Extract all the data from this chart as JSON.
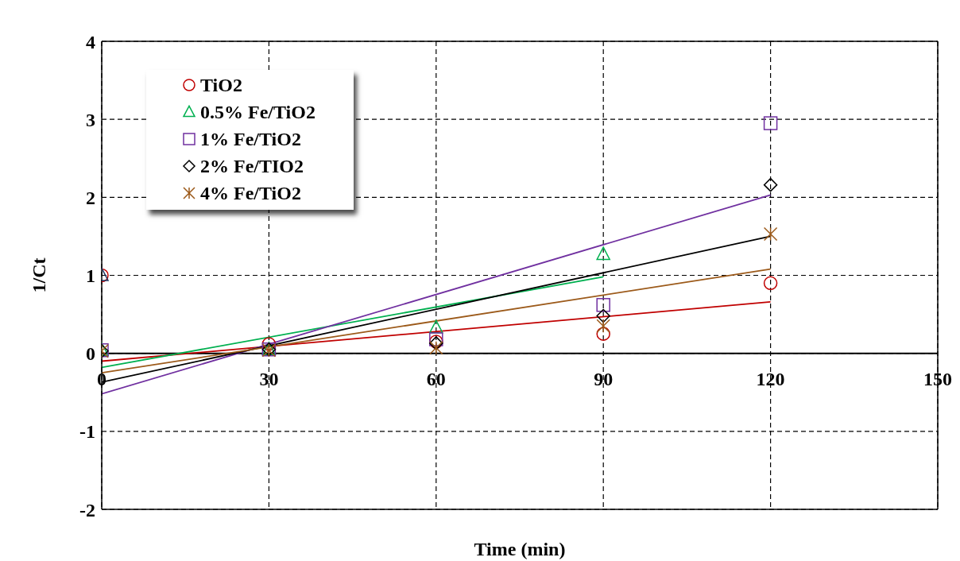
{
  "chart_data": {
    "type": "scatter",
    "xlabel": "Time (min)",
    "ylabel": "1/Ct",
    "x": [
      0,
      30,
      60,
      90,
      120
    ],
    "xlim": [
      0,
      150
    ],
    "xticks": [
      0,
      30,
      60,
      90,
      120,
      150
    ],
    "ylim": [
      -2,
      4
    ],
    "yticks": [
      -2,
      -1,
      0,
      1,
      2,
      3,
      4
    ],
    "grid": true,
    "legend": "top left",
    "series": [
      {
        "name": "TiO2",
        "color": "#c00000",
        "marker": "circle",
        "values": [
          1,
          0.12,
          0.15,
          0.25,
          0.9
        ]
      },
      {
        "name": "0.5% Fe/TiO2",
        "color": "#00b050",
        "marker": "triangle",
        "values": [
          0.04,
          0.05,
          0.33,
          1.27,
          null
        ]
      },
      {
        "name": "1% Fe/TiO2",
        "color": "#7030a0",
        "marker": "square",
        "values": [
          0.04,
          0.05,
          0.18,
          0.62,
          2.95
        ]
      },
      {
        "name": "2% Fe/TIO2",
        "color": "#000000",
        "marker": "diamond",
        "values": [
          0.03,
          0.05,
          0.13,
          0.48,
          2.16
        ]
      },
      {
        "name": "4% Fe/TiO2",
        "color": "#9c5a1a",
        "marker": "cross",
        "values": [
          0.03,
          0.04,
          0.07,
          0.35,
          1.53
        ]
      },
      {
        "color": "#1f3864",
        "marker": "triangle",
        "x": [
          0
        ],
        "values": [
          1
        ]
      },
      {
        "type": "line",
        "color": "#c00000",
        "x": [
          0,
          120
        ],
        "values": [
          -0.1,
          0.66
        ]
      },
      {
        "type": "line",
        "color": "#00b050",
        "x": [
          0,
          90
        ],
        "values": [
          -0.18,
          0.98
        ]
      },
      {
        "type": "line",
        "color": "#7030a0",
        "x": [
          0,
          120
        ],
        "values": [
          -0.52,
          2.03
        ]
      },
      {
        "type": "line",
        "color": "#000000",
        "x": [
          0,
          120
        ],
        "values": [
          -0.37,
          1.5
        ]
      },
      {
        "type": "line",
        "color": "#9c5a1a",
        "x": [
          0,
          120
        ],
        "values": [
          -0.25,
          1.08
        ]
      }
    ]
  }
}
